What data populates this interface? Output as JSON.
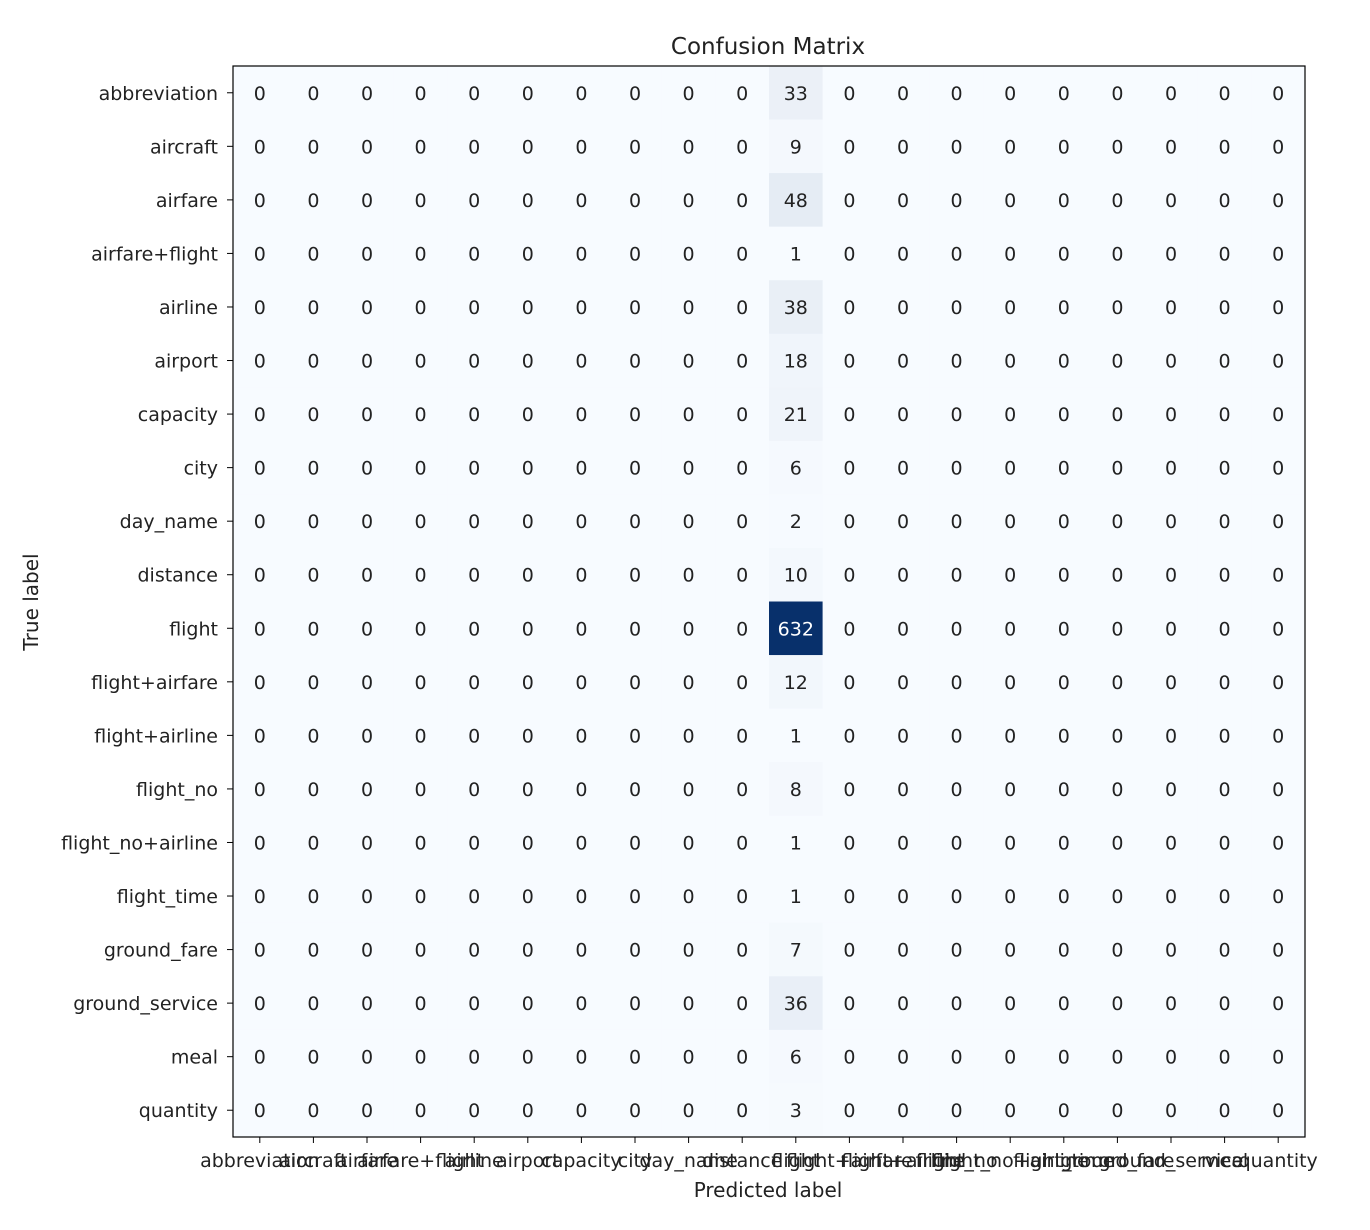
{
  "chart_data": {
    "type": "heatmap",
    "title": "Confusion Matrix",
    "xlabel": "Predicted label",
    "ylabel": "True label",
    "colormap": "Blues",
    "colors": {
      "low": "#f7fbff",
      "high": "#08306b",
      "text_dark": "#222222",
      "text_light": "#ffffff",
      "frame": "#000000"
    },
    "row_labels": [
      "abbreviation",
      "aircraft",
      "airfare",
      "airfare+flight",
      "airline",
      "airport",
      "capacity",
      "city",
      "day_name",
      "distance",
      "flight",
      "flight+airfare",
      "flight+airline",
      "flight_no",
      "flight_no+airline",
      "flight_time",
      "ground_fare",
      "ground_service",
      "meal",
      "quantity"
    ],
    "col_labels": [
      "abbreviation",
      "aircraft",
      "airfare",
      "airfare+flight",
      "airline",
      "airport",
      "capacity",
      "city",
      "day_name",
      "distance",
      "flight",
      "flight+airfare",
      "flight+airline",
      "flight_no",
      "flight_no+airline",
      "flight_time",
      "ground_fare",
      "ground_service",
      "meal",
      "quantity"
    ],
    "values": [
      [
        0,
        0,
        0,
        0,
        0,
        0,
        0,
        0,
        0,
        0,
        33,
        0,
        0,
        0,
        0,
        0,
        0,
        0,
        0,
        0
      ],
      [
        0,
        0,
        0,
        0,
        0,
        0,
        0,
        0,
        0,
        0,
        9,
        0,
        0,
        0,
        0,
        0,
        0,
        0,
        0,
        0
      ],
      [
        0,
        0,
        0,
        0,
        0,
        0,
        0,
        0,
        0,
        0,
        48,
        0,
        0,
        0,
        0,
        0,
        0,
        0,
        0,
        0
      ],
      [
        0,
        0,
        0,
        0,
        0,
        0,
        0,
        0,
        0,
        0,
        1,
        0,
        0,
        0,
        0,
        0,
        0,
        0,
        0,
        0
      ],
      [
        0,
        0,
        0,
        0,
        0,
        0,
        0,
        0,
        0,
        0,
        38,
        0,
        0,
        0,
        0,
        0,
        0,
        0,
        0,
        0
      ],
      [
        0,
        0,
        0,
        0,
        0,
        0,
        0,
        0,
        0,
        0,
        18,
        0,
        0,
        0,
        0,
        0,
        0,
        0,
        0,
        0
      ],
      [
        0,
        0,
        0,
        0,
        0,
        0,
        0,
        0,
        0,
        0,
        21,
        0,
        0,
        0,
        0,
        0,
        0,
        0,
        0,
        0
      ],
      [
        0,
        0,
        0,
        0,
        0,
        0,
        0,
        0,
        0,
        0,
        6,
        0,
        0,
        0,
        0,
        0,
        0,
        0,
        0,
        0
      ],
      [
        0,
        0,
        0,
        0,
        0,
        0,
        0,
        0,
        0,
        0,
        2,
        0,
        0,
        0,
        0,
        0,
        0,
        0,
        0,
        0
      ],
      [
        0,
        0,
        0,
        0,
        0,
        0,
        0,
        0,
        0,
        0,
        10,
        0,
        0,
        0,
        0,
        0,
        0,
        0,
        0,
        0
      ],
      [
        0,
        0,
        0,
        0,
        0,
        0,
        0,
        0,
        0,
        0,
        632,
        0,
        0,
        0,
        0,
        0,
        0,
        0,
        0,
        0
      ],
      [
        0,
        0,
        0,
        0,
        0,
        0,
        0,
        0,
        0,
        0,
        12,
        0,
        0,
        0,
        0,
        0,
        0,
        0,
        0,
        0
      ],
      [
        0,
        0,
        0,
        0,
        0,
        0,
        0,
        0,
        0,
        0,
        1,
        0,
        0,
        0,
        0,
        0,
        0,
        0,
        0,
        0
      ],
      [
        0,
        0,
        0,
        0,
        0,
        0,
        0,
        0,
        0,
        0,
        8,
        0,
        0,
        0,
        0,
        0,
        0,
        0,
        0,
        0
      ],
      [
        0,
        0,
        0,
        0,
        0,
        0,
        0,
        0,
        0,
        0,
        1,
        0,
        0,
        0,
        0,
        0,
        0,
        0,
        0,
        0
      ],
      [
        0,
        0,
        0,
        0,
        0,
        0,
        0,
        0,
        0,
        0,
        1,
        0,
        0,
        0,
        0,
        0,
        0,
        0,
        0,
        0
      ],
      [
        0,
        0,
        0,
        0,
        0,
        0,
        0,
        0,
        0,
        0,
        7,
        0,
        0,
        0,
        0,
        0,
        0,
        0,
        0,
        0
      ],
      [
        0,
        0,
        0,
        0,
        0,
        0,
        0,
        0,
        0,
        0,
        36,
        0,
        0,
        0,
        0,
        0,
        0,
        0,
        0,
        0
      ],
      [
        0,
        0,
        0,
        0,
        0,
        0,
        0,
        0,
        0,
        0,
        6,
        0,
        0,
        0,
        0,
        0,
        0,
        0,
        0,
        0
      ],
      [
        0,
        0,
        0,
        0,
        0,
        0,
        0,
        0,
        0,
        0,
        3,
        0,
        0,
        0,
        0,
        0,
        0,
        0,
        0,
        0
      ]
    ],
    "grid": false,
    "legend": "none"
  }
}
